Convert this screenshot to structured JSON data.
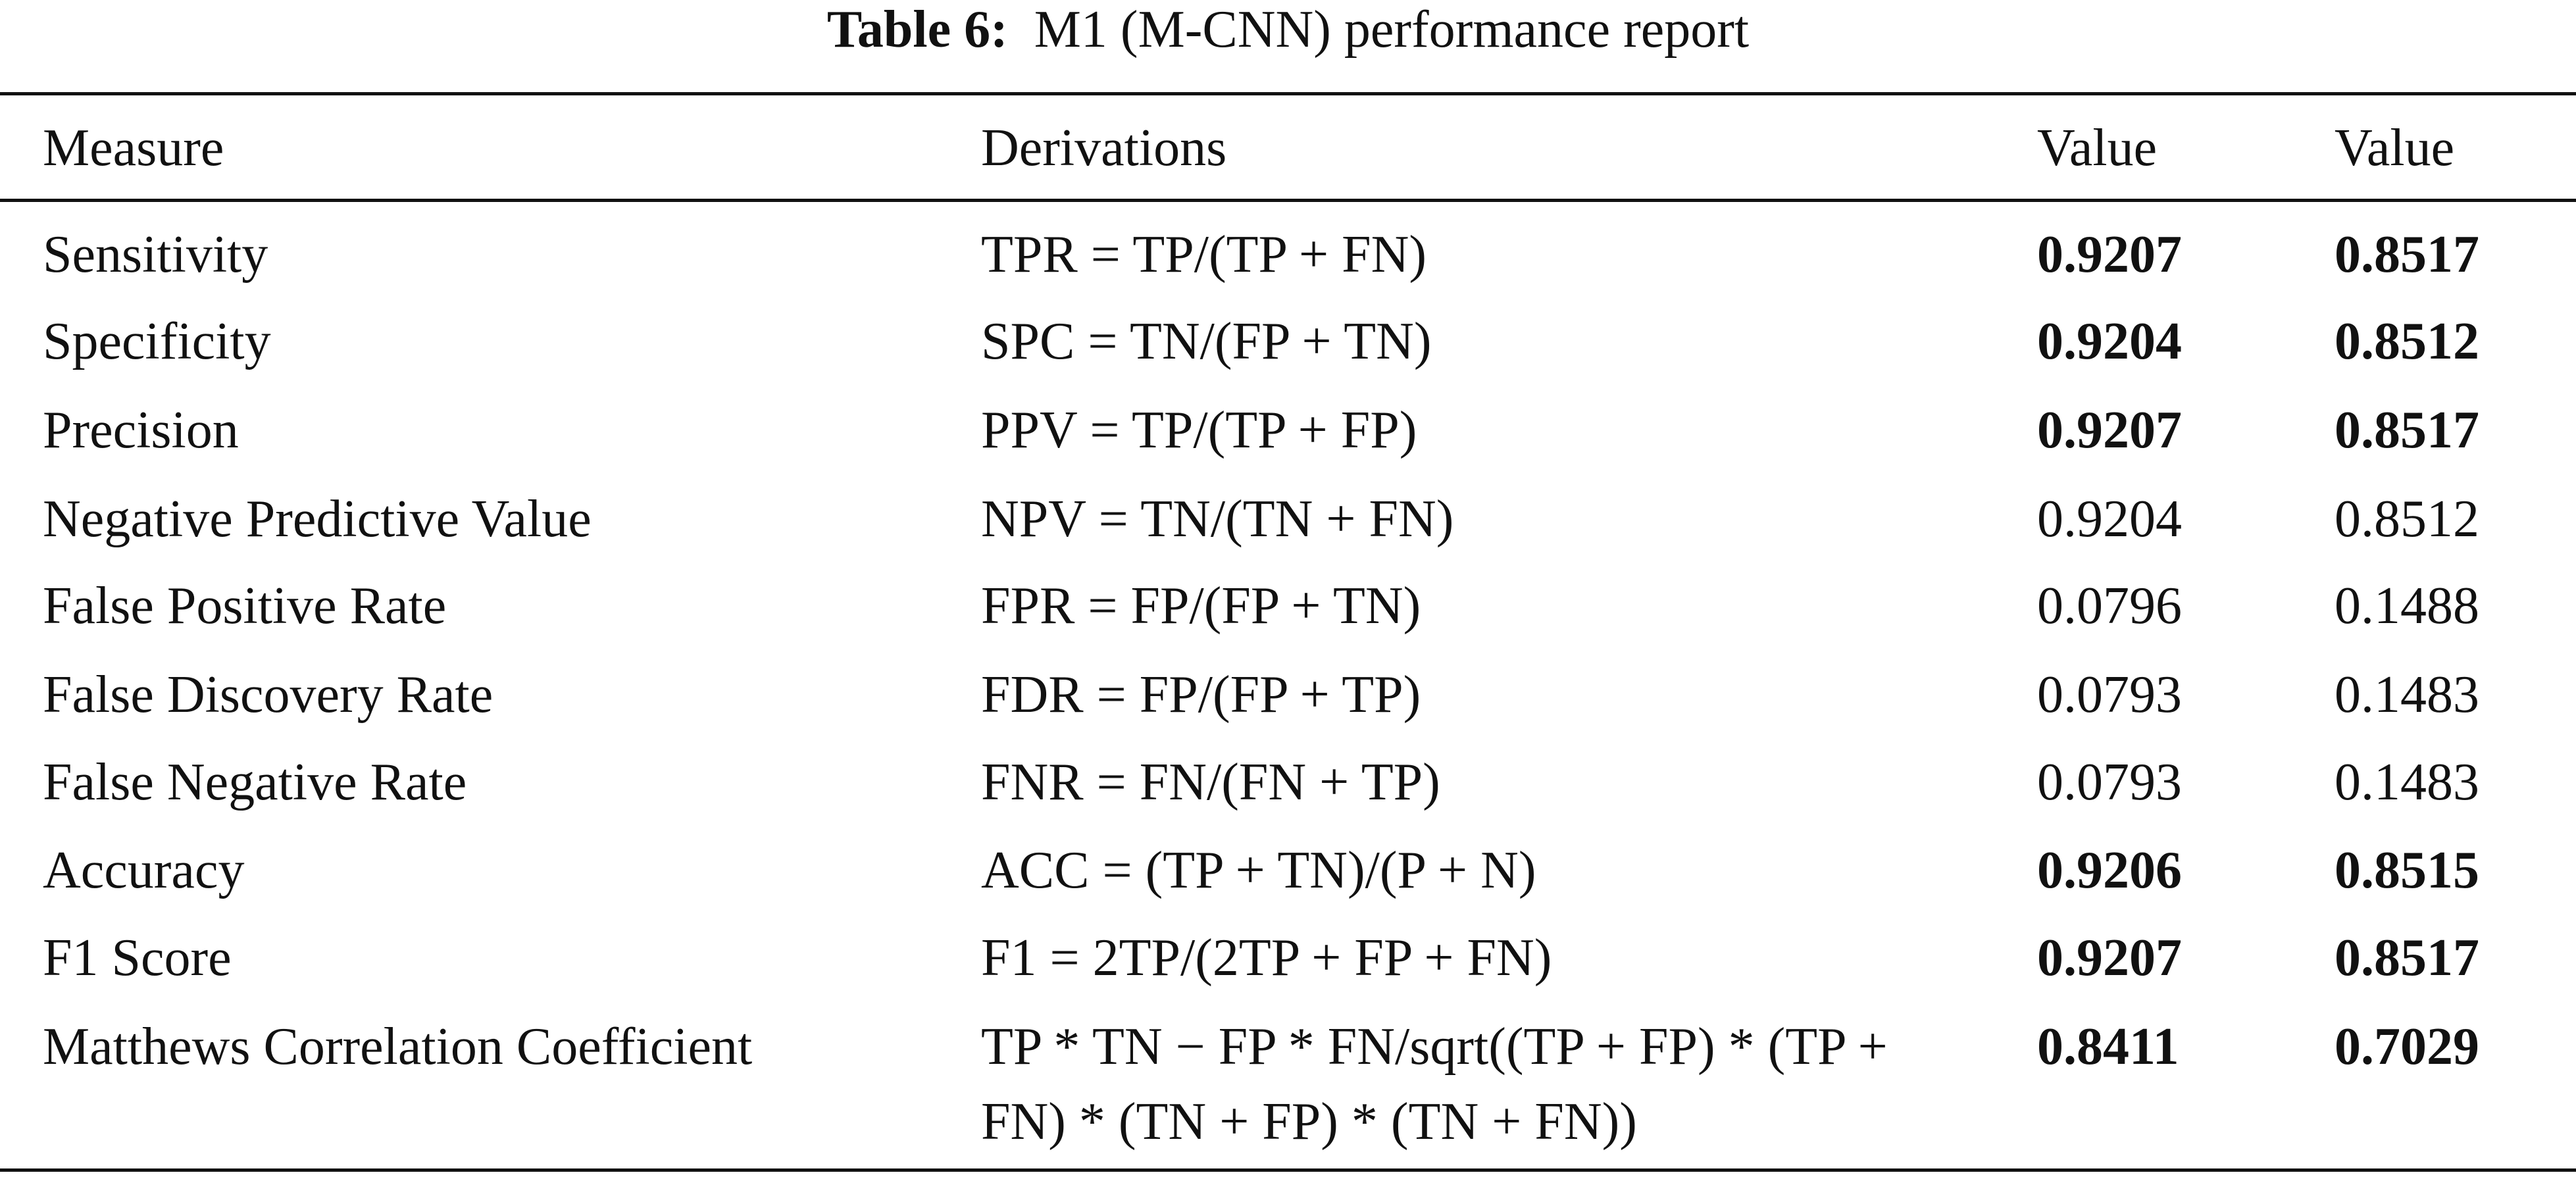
{
  "table": {
    "caption_label": "Table 6:",
    "caption_text": "M1 (M-CNN) performance report",
    "header": [
      "Measure",
      "Derivations",
      "Value",
      "Value"
    ],
    "rows": [
      {
        "cells": [
          "Sensitivity",
          "TPR = TP/(TP + FN)",
          "0.9207",
          "0.8517"
        ],
        "bold": true
      },
      {
        "cells": [
          "Specificity",
          "SPC = TN/(FP + TN)",
          "0.9204",
          "0.8512"
        ],
        "bold": true
      },
      {
        "cells": [
          "Precision",
          "PPV = TP/(TP + FP)",
          "0.9207",
          "0.8517"
        ],
        "bold": true
      },
      {
        "cells": [
          "Negative Predictive Value",
          "NPV = TN/(TN + FN)",
          "0.9204",
          "0.8512"
        ],
        "bold": false
      },
      {
        "cells": [
          "False Positive Rate",
          "FPR = FP/(FP + TN)",
          "0.0796",
          "0.1488"
        ],
        "bold": false
      },
      {
        "cells": [
          "False Discovery Rate",
          "FDR = FP/(FP + TP)",
          "0.0793",
          "0.1483"
        ],
        "bold": false
      },
      {
        "cells": [
          "False Negative Rate",
          "FNR = FN/(FN + TP)",
          "0.0793",
          "0.1483"
        ],
        "bold": false
      },
      {
        "cells": [
          "Accuracy",
          "ACC = (TP + TN)/(P + N)",
          "0.9206",
          "0.8515"
        ],
        "bold": true
      },
      {
        "cells": [
          "F1 Score",
          "F1 = 2TP/(2TP + FP + FN)",
          "0.9207",
          "0.8517"
        ],
        "bold": true
      },
      {
        "cells": [
          "Matthews Correlation Coefficient",
          "TP * TN − FP * FN/sqrt((TP + FP) * (TP + FN) * (TN + FP) * (TN + FN))",
          "0.8411",
          "0.7029"
        ],
        "bold": true
      }
    ]
  }
}
